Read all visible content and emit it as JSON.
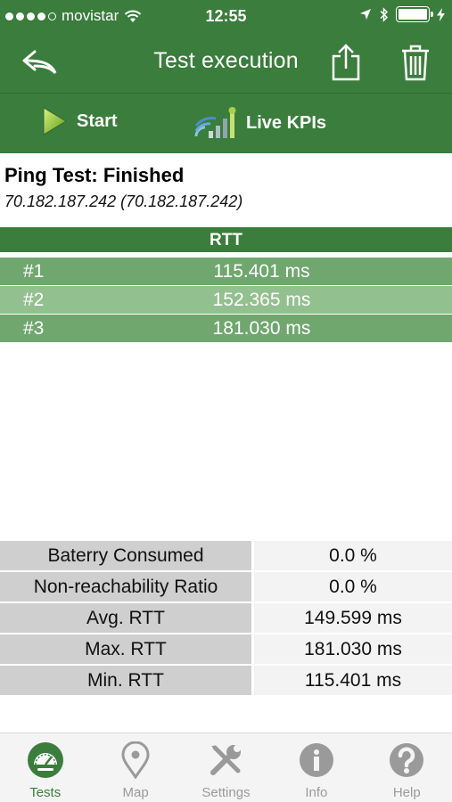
{
  "status_bar": {
    "carrier": "movistar",
    "time": "12:55"
  },
  "nav": {
    "title": "Test execution",
    "back_icon": "back-arrow-icon",
    "share_icon": "share-icon",
    "trash_icon": "trash-icon"
  },
  "toolbar": {
    "start_label": "Start",
    "live_kpis_label": "Live KPIs"
  },
  "test": {
    "title": "Ping Test: Finished",
    "address": "70.182.187.242 (70.182.187.242)"
  },
  "rtt_table": {
    "header": "RTT",
    "rows": [
      {
        "index": "#1",
        "value": "115.401 ms"
      },
      {
        "index": "#2",
        "value": "152.365 ms"
      },
      {
        "index": "#3",
        "value": "181.030 ms"
      }
    ]
  },
  "stats": [
    {
      "label": "Baterry Consumed",
      "value": "0.0 %"
    },
    {
      "label": "Non-reachability Ratio",
      "value": "0.0 %"
    },
    {
      "label": "Avg. RTT",
      "value": "149.599 ms"
    },
    {
      "label": "Max. RTT",
      "value": "181.030 ms"
    },
    {
      "label": "Min. RTT",
      "value": "115.401 ms"
    }
  ],
  "tabs": [
    {
      "label": "Tests",
      "active": true
    },
    {
      "label": "Map",
      "active": false
    },
    {
      "label": "Settings",
      "active": false
    },
    {
      "label": "Info",
      "active": false
    },
    {
      "label": "Help",
      "active": false
    }
  ],
  "colors": {
    "primary_green": "#3a7d3c",
    "row_green": "#6fa76e",
    "row_green_light": "#93c08f",
    "inactive_gray": "#9a9a9a"
  }
}
